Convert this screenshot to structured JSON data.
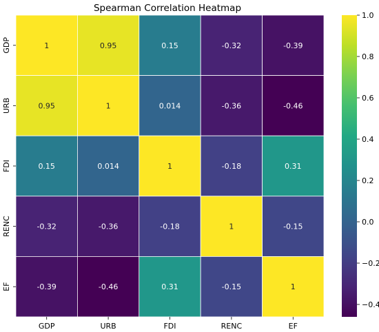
{
  "chart_data": {
    "type": "heatmap",
    "title": "Spearman Correlation Heatmap",
    "x_categories": [
      "GDP",
      "URB",
      "FDI",
      "RENC",
      "EF"
    ],
    "y_categories": [
      "GDP",
      "URB",
      "FDI",
      "RENC",
      "EF"
    ],
    "values": [
      [
        1,
        0.95,
        0.15,
        -0.32,
        -0.39
      ],
      [
        0.95,
        1,
        0.014,
        -0.36,
        -0.46
      ],
      [
        0.15,
        0.014,
        1,
        -0.18,
        0.31
      ],
      [
        -0.32,
        -0.36,
        -0.18,
        1,
        -0.15
      ],
      [
        -0.39,
        -0.46,
        0.31,
        -0.15,
        1
      ]
    ],
    "cell_labels": [
      [
        "1",
        "0.95",
        "0.15",
        "-0.32",
        "-0.39"
      ],
      [
        "0.95",
        "1",
        "0.014",
        "-0.36",
        "-0.46"
      ],
      [
        "0.15",
        "0.014",
        "1",
        "-0.18",
        "0.31"
      ],
      [
        "-0.32",
        "-0.36",
        "-0.18",
        "1",
        "-0.15"
      ],
      [
        "-0.39",
        "-0.46",
        "0.31",
        "-0.15",
        "1"
      ]
    ],
    "colorscale": "viridis",
    "zlim": [
      -0.46,
      1
    ],
    "colorbar": {
      "ticks": [
        1.0,
        0.8,
        0.6,
        0.4,
        0.2,
        0.0,
        -0.2,
        -0.4
      ],
      "tick_labels": [
        "1.0",
        "0.8",
        "0.6",
        "0.4",
        "0.2",
        "0.0",
        "−0.2",
        "−0.4"
      ],
      "position": "right"
    },
    "grid": true,
    "cell_border_color": "#ffffff",
    "text_colors": {
      "on_bright": "#262626",
      "on_dark": "#ffffff"
    }
  }
}
